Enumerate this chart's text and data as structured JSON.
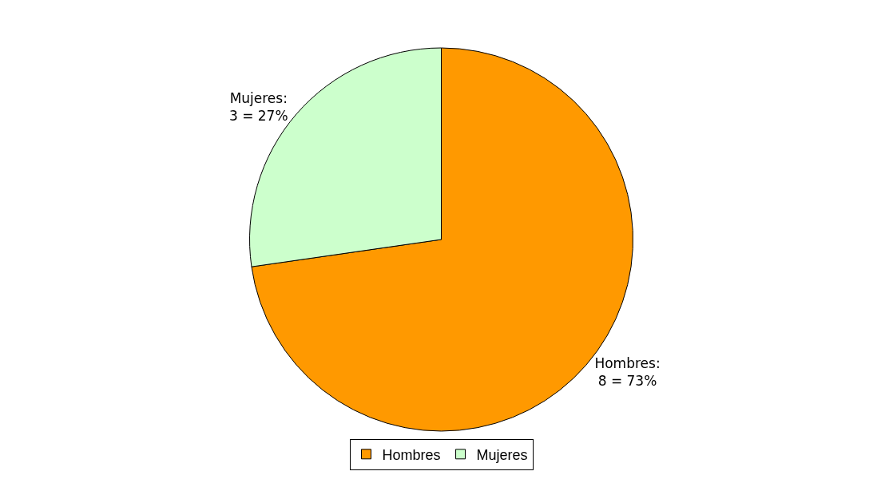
{
  "chart_data": {
    "type": "pie",
    "categories": [
      "Hombres",
      "Mujeres"
    ],
    "values": [
      8,
      3
    ],
    "colors": [
      "#ff9900",
      "#ccffcc"
    ],
    "value_labels": [
      "Hombres:\n8 = 73%",
      "Mujeres:\n3 = 27%"
    ],
    "legend": "bottom"
  }
}
